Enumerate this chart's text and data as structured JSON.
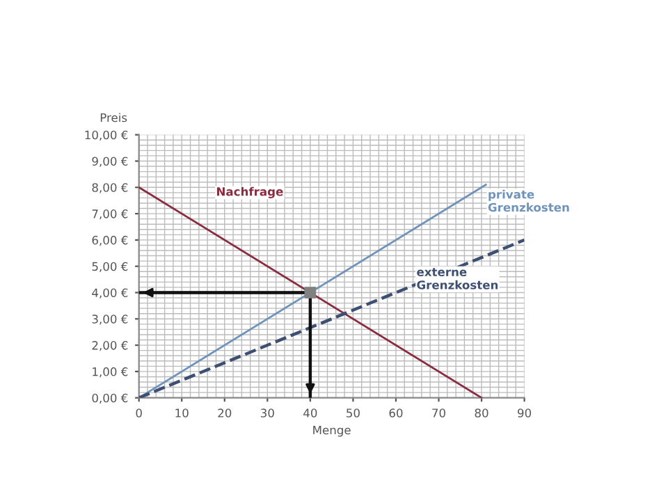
{
  "chart_data": {
    "type": "line",
    "xlabel": "Menge",
    "ylabel": "Preis",
    "xlim": [
      0,
      90
    ],
    "xticks": [
      0,
      10,
      20,
      30,
      40,
      50,
      60,
      70,
      80,
      90
    ],
    "ylim": [
      0,
      10
    ],
    "yticks": [
      {
        "value": 0,
        "label": "0,00 €"
      },
      {
        "value": 1,
        "label": "1,00 €"
      },
      {
        "value": 2,
        "label": "2,00 €"
      },
      {
        "value": 3,
        "label": "3,00 €"
      },
      {
        "value": 4,
        "label": "4,00 €"
      },
      {
        "value": 5,
        "label": "5,00 €"
      },
      {
        "value": 6,
        "label": "6,00 €"
      },
      {
        "value": 7,
        "label": "7,00 €"
      },
      {
        "value": 8,
        "label": "8,00 €"
      },
      {
        "value": 9,
        "label": "9,00 €"
      },
      {
        "value": 10,
        "label": "10,00 €"
      }
    ],
    "grid": true,
    "marker": "none",
    "legend": false,
    "series": [
      {
        "name": "Nachfrage",
        "color": "#8b2b3f",
        "x": [
          0,
          80
        ],
        "values": [
          8,
          0
        ],
        "line_style": "solid"
      },
      {
        "name": "private Grenzkosten",
        "color": "#6f93bb",
        "x": [
          0,
          81
        ],
        "values": [
          0,
          8.1
        ],
        "line_style": "solid"
      },
      {
        "name": "externe Grenzkosten",
        "color": "#3d4f72",
        "x": [
          0,
          90
        ],
        "values": [
          0,
          6
        ],
        "line_style": "dashed"
      },
      {
        "color": "#111111",
        "x": [
          40,
          0
        ],
        "values": [
          4,
          4
        ],
        "line_style": "solid"
      },
      {
        "color": "#111111",
        "x": [
          40,
          40
        ],
        "values": [
          4,
          0
        ],
        "line_style": "solid"
      },
      {
        "type": "scatter",
        "color": "#808080",
        "x": [
          40
        ],
        "values": [
          4
        ],
        "marker": "square"
      }
    ]
  }
}
